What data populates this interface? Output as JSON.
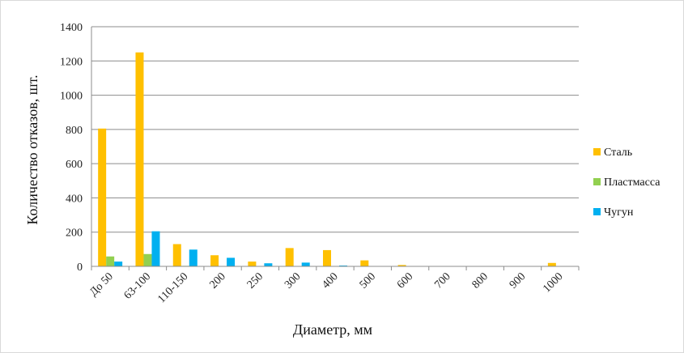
{
  "chart_data": {
    "type": "bar",
    "title": "",
    "xlabel": "Диаметр, мм",
    "ylabel": "Количество отказов, шт.",
    "ylim": [
      0,
      1400
    ],
    "yticks": [
      0,
      200,
      400,
      600,
      800,
      1000,
      1200,
      1400
    ],
    "grid": true,
    "legend_position": "right",
    "categories": [
      "До 50",
      "63-100",
      "110-150",
      "200",
      "250",
      "300",
      "400",
      "500",
      "600",
      "700",
      "800",
      "900",
      "1000"
    ],
    "series": [
      {
        "name": "Сталь",
        "color": "#ffc000",
        "values": [
          805,
          1250,
          130,
          65,
          28,
          107,
          95,
          35,
          8,
          0,
          0,
          0,
          20
        ]
      },
      {
        "name": "Пластмасса",
        "color": "#92d050",
        "values": [
          58,
          72,
          3,
          0,
          0,
          0,
          0,
          0,
          0,
          0,
          0,
          0,
          0
        ]
      },
      {
        "name": "Чугун",
        "color": "#00b0f0",
        "values": [
          28,
          205,
          98,
          50,
          18,
          22,
          5,
          0,
          0,
          0,
          0,
          0,
          0
        ]
      }
    ]
  }
}
